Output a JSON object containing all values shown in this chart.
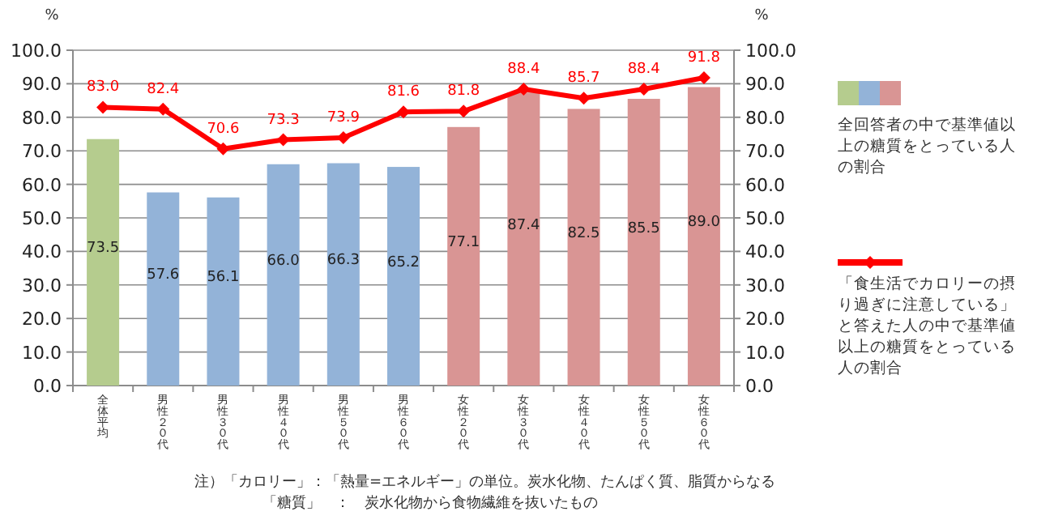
{
  "chart_data": {
    "type": "bar",
    "categories": [
      "全体平均",
      "男性２０代",
      "男性３０代",
      "男性４０代",
      "男性５０代",
      "男性６０代",
      "女性２０代",
      "女性３０代",
      "女性４０代",
      "女性５０代",
      "女性６０代"
    ],
    "series": [
      {
        "name": "全回答者の中で基準値以上の糖質をとっている人の割合",
        "colors": [
          "#b5cc8e",
          "#93b3d8",
          "#93b3d8",
          "#93b3d8",
          "#93b3d8",
          "#93b3d8",
          "#d99594",
          "#d99594",
          "#d99594",
          "#d99594",
          "#d99594"
        ],
        "values": [
          73.5,
          57.6,
          56.1,
          66.0,
          66.3,
          65.2,
          77.1,
          87.4,
          82.5,
          85.5,
          89.0
        ],
        "value_labels": [
          "73.5",
          "57.6",
          "56.1",
          "66.0",
          "66.3",
          "65.2",
          "77.1",
          "87.4",
          "82.5",
          "85.5",
          "89.0"
        ]
      },
      {
        "type": "line",
        "name": "「食生活でカロリーの摂り過ぎに注意している」と答えた人の中で基準値以上の糖質をとっている人の割合",
        "color": "#ff0000",
        "marker": "diamond",
        "values": [
          83.0,
          82.4,
          70.6,
          73.3,
          73.9,
          81.6,
          81.8,
          88.4,
          85.7,
          88.4,
          91.8
        ],
        "value_labels": [
          "83.0",
          "82.4",
          "70.6",
          "73.3",
          "73.9",
          "81.6",
          "81.8",
          "88.4",
          "85.7",
          "88.4",
          "91.8"
        ]
      }
    ],
    "ylabel": "%",
    "y2label": "%",
    "ylim": [
      0,
      100
    ],
    "yticks": [
      {
        "value": 0,
        "label": "0.0"
      },
      {
        "value": 10,
        "label": "10.0"
      },
      {
        "value": 20,
        "label": "20.0"
      },
      {
        "value": 30,
        "label": "30.0"
      },
      {
        "value": 40,
        "label": "40.0"
      },
      {
        "value": 50,
        "label": "50.0"
      },
      {
        "value": 60,
        "label": "60.0"
      },
      {
        "value": 70,
        "label": "70.0"
      },
      {
        "value": 80,
        "label": "80.0"
      },
      {
        "value": 90,
        "label": "90.0"
      },
      {
        "value": 100,
        "label": "100.0"
      }
    ],
    "y2lim": [
      0,
      100
    ],
    "y2ticks": [
      {
        "value": 0,
        "label": "0.0"
      },
      {
        "value": 10,
        "label": "10.0"
      },
      {
        "value": 20,
        "label": "20.0"
      },
      {
        "value": 30,
        "label": "30.0"
      },
      {
        "value": 40,
        "label": "40.0"
      },
      {
        "value": 50,
        "label": "50.0"
      },
      {
        "value": 60,
        "label": "60.0"
      },
      {
        "value": 70,
        "label": "70.0"
      },
      {
        "value": 80,
        "label": "80.0"
      },
      {
        "value": 90,
        "label": "90.0"
      },
      {
        "value": 100,
        "label": "100.0"
      }
    ],
    "grid": "y",
    "legend": "right",
    "annotations": [
      "注）「カロリー」：「熱量=エネルギー」の単位。炭水化物、たんぱく質、脂質からなる",
      "「糖質」　：　炭水化物から食物繊維を抜いたもの"
    ]
  }
}
